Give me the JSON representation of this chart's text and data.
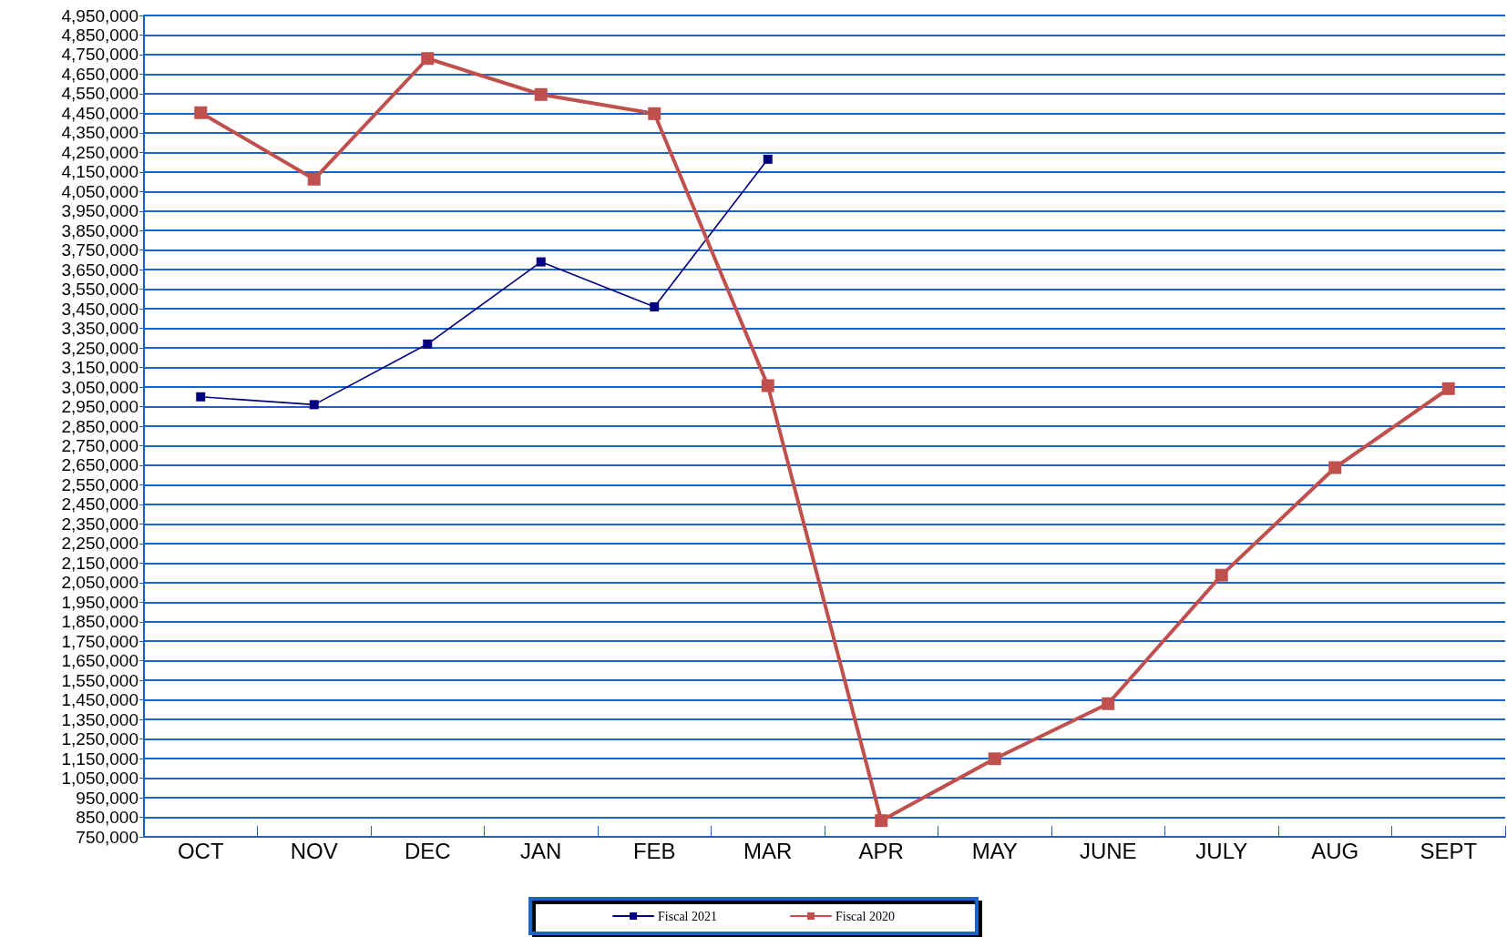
{
  "chart_data": {
    "type": "line",
    "categories": [
      "OCT",
      "NOV",
      "DEC",
      "JAN",
      "FEB",
      "MAR",
      "APR",
      "MAY",
      "JUNE",
      "JULY",
      "AUG",
      "SEPT"
    ],
    "series": [
      {
        "name": "Fiscal 2021",
        "color": "#000080",
        "values": [
          3000000,
          2960000,
          3270000,
          3690000,
          3460000,
          4215000,
          null,
          null,
          null,
          null,
          null,
          null
        ]
      },
      {
        "name": "Fiscal 2020",
        "color": "#c0504d",
        "values": [
          4453000,
          4113000,
          4730000,
          4546000,
          4448000,
          3057000,
          833000,
          1149000,
          1431000,
          2088000,
          2638000,
          3042000
        ]
      }
    ],
    "ylim": [
      750000,
      4950000
    ],
    "yticks": [
      {
        "value": 750000,
        "label": "750,000"
      },
      {
        "value": 850000,
        "label": "850,000"
      },
      {
        "value": 950000,
        "label": "950,000"
      },
      {
        "value": 1050000,
        "label": "1,050,000"
      },
      {
        "value": 1150000,
        "label": "1,150,000"
      },
      {
        "value": 1250000,
        "label": "1,250,000"
      },
      {
        "value": 1350000,
        "label": "1,350,000"
      },
      {
        "value": 1450000,
        "label": "1,450,000"
      },
      {
        "value": 1550000,
        "label": "1,550,000"
      },
      {
        "value": 1650000,
        "label": "1,650,000"
      },
      {
        "value": 1750000,
        "label": "1,750,000"
      },
      {
        "value": 1850000,
        "label": "1,850,000"
      },
      {
        "value": 1950000,
        "label": "1,950,000"
      },
      {
        "value": 2050000,
        "label": "2,050,000"
      },
      {
        "value": 2150000,
        "label": "2,150,000"
      },
      {
        "value": 2250000,
        "label": "2,250,000"
      },
      {
        "value": 2350000,
        "label": "2,350,000"
      },
      {
        "value": 2450000,
        "label": "2,450,000"
      },
      {
        "value": 2550000,
        "label": "2,550,000"
      },
      {
        "value": 2650000,
        "label": "2,650,000"
      },
      {
        "value": 2750000,
        "label": "2,750,000"
      },
      {
        "value": 2850000,
        "label": "2,850,000"
      },
      {
        "value": 2950000,
        "label": "2,950,000"
      },
      {
        "value": 3050000,
        "label": "3,050,000"
      },
      {
        "value": 3150000,
        "label": "3,150,000"
      },
      {
        "value": 3250000,
        "label": "3,250,000"
      },
      {
        "value": 3350000,
        "label": "3,350,000"
      },
      {
        "value": 3450000,
        "label": "3,450,000"
      },
      {
        "value": 3550000,
        "label": "3,550,000"
      },
      {
        "value": 3650000,
        "label": "3,650,000"
      },
      {
        "value": 3750000,
        "label": "3,750,000"
      },
      {
        "value": 3850000,
        "label": "3,850,000"
      },
      {
        "value": 3950000,
        "label": "3,950,000"
      },
      {
        "value": 4050000,
        "label": "4,050,000"
      },
      {
        "value": 4150000,
        "label": "4,150,000"
      },
      {
        "value": 4250000,
        "label": "4,250,000"
      },
      {
        "value": 4350000,
        "label": "4,350,000"
      },
      {
        "value": 4450000,
        "label": "4,450,000"
      },
      {
        "value": 4550000,
        "label": "4,550,000"
      },
      {
        "value": 4650000,
        "label": "4,650,000"
      },
      {
        "value": 4750000,
        "label": "4,750,000"
      },
      {
        "value": 4850000,
        "label": "4,850,000"
      },
      {
        "value": 4950000,
        "label": "4,950,000"
      }
    ],
    "grid": "y",
    "legend": "bottom",
    "marker": "square",
    "line_style": "solid"
  }
}
